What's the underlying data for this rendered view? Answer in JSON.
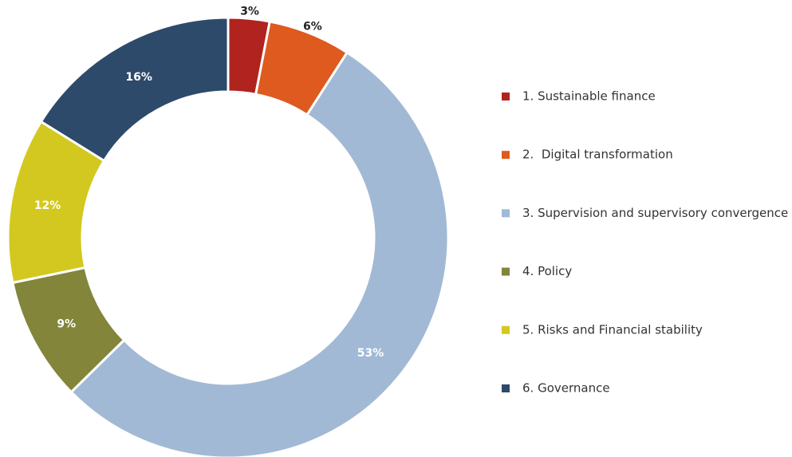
{
  "chart_data": {
    "type": "donut",
    "categories": [
      "1. Sustainable finance",
      "2.  Digital transformation",
      "3. Supervision and supervisory convergence",
      "4. Policy",
      "5. Risks and Financial stability",
      "6. Governance"
    ],
    "values": [
      3,
      6,
      53,
      9,
      12,
      16
    ],
    "value_labels": [
      "3%",
      "6%",
      "53%",
      "9%",
      "12%",
      "16%"
    ],
    "colors": [
      "#b0231e",
      "#de5a1f",
      "#a1b9d4",
      "#82853a",
      "#d3c81f",
      "#2d4a6b"
    ],
    "legend": "right"
  }
}
